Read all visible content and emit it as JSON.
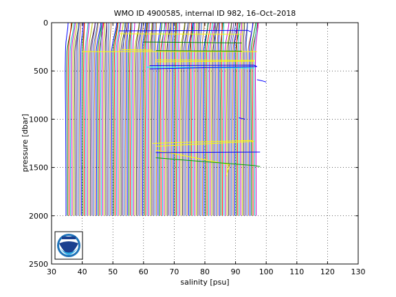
{
  "chart_data": {
    "type": "line",
    "title": "WMO ID 4900585, internal ID 982, 16–Oct–2018",
    "xlabel": "salinity [psu]",
    "ylabel": "pressure [dbar]",
    "xlim": [
      30,
      130
    ],
    "ylim": [
      2500,
      0
    ],
    "y_reversed": true,
    "grid": true,
    "grid_style": "dotted",
    "legend": "none",
    "x_ticks": [
      "30",
      "40",
      "50",
      "60",
      "70",
      "80",
      "90",
      "100",
      "110",
      "120",
      "130"
    ],
    "y_ticks": [
      "0",
      "500",
      "1000",
      "1500",
      "2000",
      "2500"
    ],
    "profile_offset_psu": 0.5,
    "profile_count": 125,
    "base_profile": {
      "pressure": [
        0,
        50,
        100,
        150,
        200,
        250,
        300,
        400,
        500,
        700,
        1000,
        1300,
        1600,
        2000
      ],
      "salinity": [
        35.4,
        35.3,
        35.1,
        34.9,
        34.7,
        34.6,
        34.55,
        34.5,
        34.45,
        34.5,
        34.6,
        34.65,
        34.7,
        34.72
      ]
    },
    "series_colors": [
      "#0000ff",
      "#008000",
      "#ff0000",
      "#00bfbf",
      "#bf00bf",
      "#bfbf00",
      "#404040",
      "#6f2f9f",
      "#2f6fbf",
      "#bf6f2f"
    ],
    "outliers": [
      {
        "color": "#ffff00",
        "points": [
          [
            63,
            1250
          ],
          [
            95,
            1220
          ],
          [
            96,
            1230
          ],
          [
            64,
            1280
          ]
        ]
      },
      {
        "color": "#ffff00",
        "points": [
          [
            64,
            1320
          ],
          [
            88,
            1470
          ],
          [
            87,
            1590
          ]
        ]
      },
      {
        "color": "#00a000",
        "points": [
          [
            64,
            1400
          ],
          [
            96,
            1480
          ],
          [
            98,
            1490
          ]
        ]
      },
      {
        "color": "#0000ff",
        "points": [
          [
            64,
            1345
          ],
          [
            98,
            1340
          ]
        ]
      },
      {
        "color": "#00ffff",
        "points": [
          [
            61,
            460
          ],
          [
            96,
            470
          ]
        ]
      },
      {
        "color": "#0000ff",
        "points": [
          [
            62,
            445
          ],
          [
            96,
            440
          ],
          [
            97,
            455
          ],
          [
            62,
            478
          ]
        ]
      },
      {
        "color": "#ffff00",
        "points": [
          [
            64,
            385
          ],
          [
            96,
            390
          ],
          [
            96,
            400
          ],
          [
            64,
            405
          ]
        ]
      },
      {
        "color": "#ffff00",
        "points": [
          [
            53,
            280
          ],
          [
            63,
            285
          ]
        ]
      },
      {
        "color": "#ffff00",
        "points": [
          [
            40,
            300
          ],
          [
            97,
            300
          ]
        ]
      },
      {
        "color": "#008000",
        "points": [
          [
            64,
            290
          ],
          [
            92,
            295
          ]
        ]
      },
      {
        "color": "#0000ff",
        "points": [
          [
            52,
            85
          ],
          [
            94,
            80
          ],
          [
            95,
            95
          ]
        ]
      },
      {
        "color": "#ffff00",
        "points": [
          [
            52,
            115
          ],
          [
            92,
            120
          ]
        ]
      },
      {
        "color": "#008000",
        "points": [
          [
            60,
            200
          ],
          [
            92,
            210
          ]
        ]
      },
      {
        "color": "#0000ff",
        "points": [
          [
            97,
            590
          ],
          [
            99,
            605
          ],
          [
            100,
            615
          ]
        ]
      },
      {
        "color": "#0000ff",
        "points": [
          [
            91,
            985
          ],
          [
            93,
            1000
          ]
        ]
      }
    ]
  }
}
